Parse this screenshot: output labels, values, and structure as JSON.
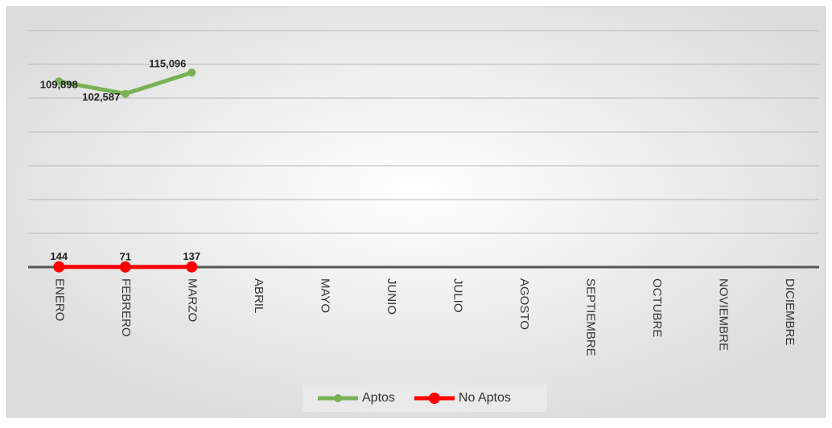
{
  "chart_data": {
    "type": "line",
    "categories": [
      "ENERO",
      "FEBRERO",
      "MARZO",
      "ABRIL",
      "MAYO",
      "JUNIO",
      "JULIO",
      "AGOSTO",
      "SEPTIEMBRE",
      "OCTUBRE",
      "NOVIEMBRE",
      "DICIEMBRE"
    ],
    "series": [
      {
        "name": "Aptos",
        "color": "#77b255",
        "values": [
          109898,
          102587,
          115096,
          null,
          null,
          null,
          null,
          null,
          null,
          null,
          null,
          null
        ],
        "value_labels": [
          "109,898",
          "102,587",
          "115,096",
          null,
          null,
          null,
          null,
          null,
          null,
          null,
          null,
          null
        ]
      },
      {
        "name": "No Aptos",
        "color": "#ff0000",
        "values": [
          144,
          71,
          137,
          null,
          null,
          null,
          null,
          null,
          null,
          null,
          null,
          null
        ]
      }
    ],
    "ylim": [
      0,
      140000
    ],
    "yticks": [
      0,
      20000,
      40000,
      60000,
      80000,
      100000,
      120000,
      140000
    ],
    "grid": true,
    "legend": "bottom"
  }
}
